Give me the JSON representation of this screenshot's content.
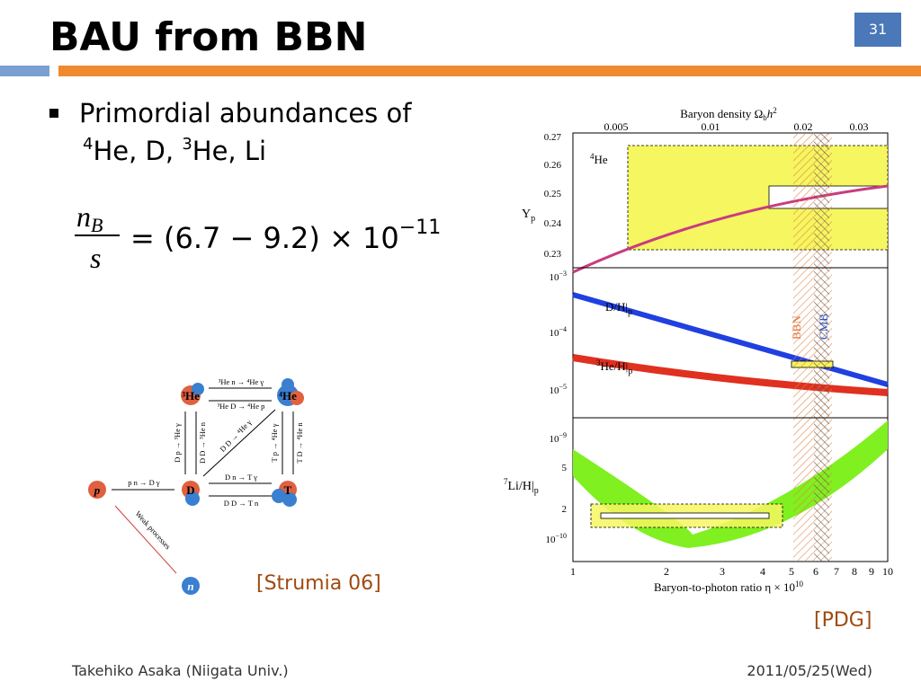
{
  "header": {
    "title": "BAU from BBN",
    "page_number": "31"
  },
  "bullet": {
    "line1": "Primordial abundances of",
    "line2": [
      {
        "sup": "4",
        "text": "He, D, "
      },
      {
        "sup": "3",
        "text": "He, Li"
      }
    ]
  },
  "formula": {
    "numerator": "n",
    "numerator_sub": "B",
    "denominator": "s",
    "rhs": "= (6.7 − 9.2) × 10",
    "exponent": "−11"
  },
  "diagram": {
    "nodes": [
      "³He",
      "⁴He",
      "p",
      "D",
      "T",
      "n"
    ],
    "reactions": [
      "³He n → ⁴He γ",
      "³He D → ⁴He p",
      "D p → ³He γ",
      "D D → ³He n",
      "D D → ⁴He γ",
      "T p → ⁴He γ",
      "T D → ⁴He n",
      "p n → D γ",
      "D n → T γ",
      "D D → T n",
      "Weak processes"
    ],
    "citation": "[Strumia 06]"
  },
  "plot": {
    "top_axis_label": "Baryon density Ω",
    "top_axis_label_sub": "b",
    "top_axis_label_rest": "h",
    "top_axis_label_sup": "2",
    "top_ticks": [
      "0.005",
      "0.01",
      "0.02",
      "0.03"
    ],
    "yp_label": "Y",
    "yp_label_sub": "p",
    "yp_ticks": [
      "0.27",
      "0.26",
      "0.25",
      "0.24",
      "0.23"
    ],
    "he4_label": {
      "sup": "4",
      "text": "He"
    },
    "mid_ticks": [
      {
        "base": "10",
        "exp": "−3"
      },
      {
        "base": "10",
        "exp": "−4"
      },
      {
        "base": "10",
        "exp": "−5"
      }
    ],
    "dh_label": "D/H|",
    "dh_sub": "p",
    "he3_label": {
      "sup": "3",
      "text": "He/H|",
      "sub": "p"
    },
    "bbn_label": "BBN",
    "cmb_label": "CMB",
    "bottom_ticks": [
      {
        "base": "10",
        "exp": "−9"
      },
      {
        "base": "5"
      },
      {
        "base": "2"
      },
      {
        "base": "10",
        "exp": "−10"
      }
    ],
    "li_label": {
      "sup": "7",
      "text": "Li/H|",
      "sub": "p"
    },
    "x_ticks": [
      "1",
      "2",
      "3",
      "4",
      "5",
      "6",
      "7",
      "8",
      "9",
      "10"
    ],
    "x_label": "Baryon-to-photon ratio η × 10",
    "x_label_sup": "10",
    "citation": "[PDG]"
  },
  "footer": {
    "author": "Takehiko Asaka (Niigata Univ.)",
    "date": "2011/05/25(Wed)"
  }
}
